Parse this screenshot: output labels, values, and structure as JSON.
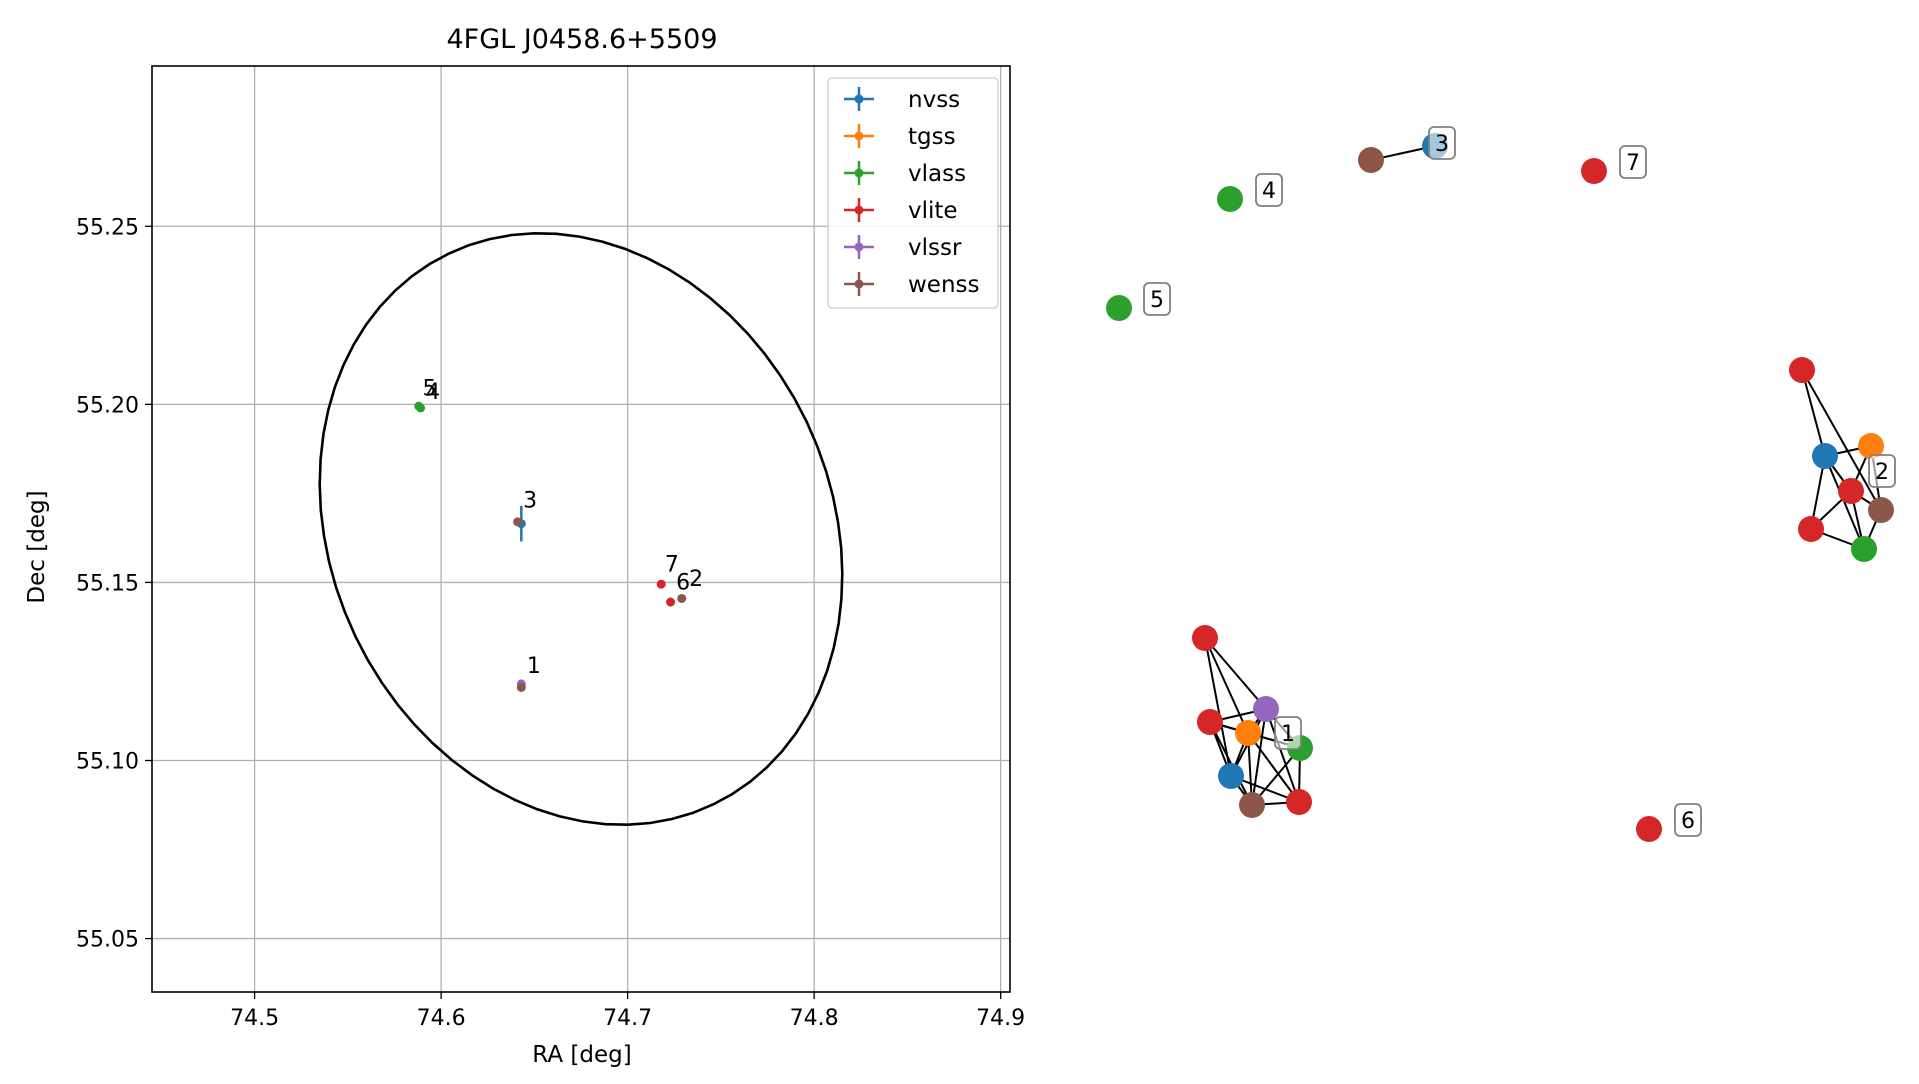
{
  "chart_data": [
    {
      "type": "scatter",
      "title": "4FGL J0458.6+5509",
      "xlabel": "RA [deg]",
      "ylabel": "Dec [deg]",
      "xlim": [
        74.445,
        74.905
      ],
      "ylim": [
        55.035,
        55.295
      ],
      "xticks": [
        74.5,
        74.6,
        74.7,
        74.8,
        74.9
      ],
      "xtick_labels": [
        "74.5",
        "74.6",
        "74.7",
        "74.8",
        "74.9"
      ],
      "yticks": [
        55.05,
        55.1,
        55.15,
        55.2,
        55.25
      ],
      "ytick_labels": [
        "55.05",
        "55.10",
        "55.15",
        "55.20",
        "55.25"
      ],
      "grid": true,
      "legend_position": "upper right",
      "ellipse": {
        "ra_center": 74.675,
        "dec_center": 55.165,
        "ra_half_width": 0.141,
        "dec_half_height": 0.0815,
        "tilt_deg": -8
      },
      "series": [
        {
          "name": "nvss",
          "color": "#1f77b4",
          "points": [
            {
              "ra": 74.643,
              "dec": 55.1665,
              "err_dec": 0.005
            }
          ]
        },
        {
          "name": "tgss",
          "color": "#ff7f0e",
          "points": []
        },
        {
          "name": "vlass",
          "color": "#2ca02c",
          "points": [
            {
              "ra": 74.588,
              "dec": 55.1995
            },
            {
              "ra": 74.589,
              "dec": 55.199
            }
          ]
        },
        {
          "name": "vlite",
          "color": "#d62728",
          "points": [
            {
              "ra": 74.718,
              "dec": 55.1495
            },
            {
              "ra": 74.723,
              "dec": 55.1445
            }
          ]
        },
        {
          "name": "vlssr",
          "color": "#9467bd",
          "points": [
            {
              "ra": 74.643,
              "dec": 55.1215
            }
          ]
        },
        {
          "name": "wenss",
          "color": "#8c564b",
          "points": [
            {
              "ra": 74.641,
              "dec": 55.167
            },
            {
              "ra": 74.643,
              "dec": 55.1205
            },
            {
              "ra": 74.729,
              "dec": 55.1455
            }
          ]
        }
      ],
      "annotations": [
        {
          "text": "1",
          "ra": 74.646,
          "dec": 55.1245
        },
        {
          "text": "2",
          "ra": 74.733,
          "dec": 55.149
        },
        {
          "text": "3",
          "ra": 74.644,
          "dec": 55.171
        },
        {
          "text": "4",
          "ra": 74.592,
          "dec": 55.2015
        },
        {
          "text": "5",
          "ra": 74.59,
          "dec": 55.2025
        },
        {
          "text": "6",
          "ra": 74.726,
          "dec": 55.148
        },
        {
          "text": "7",
          "ra": 74.72,
          "dec": 55.153
        }
      ]
    },
    {
      "type": "network",
      "nodes": [
        {
          "id": "g5",
          "color": "#2ca02c"
        },
        {
          "id": "g4",
          "color": "#2ca02c"
        },
        {
          "id": "b3",
          "color": "#8c564b"
        },
        {
          "id": "n3",
          "color": "#1f77b4"
        },
        {
          "id": "r7",
          "color": "#d62728"
        },
        {
          "id": "r6",
          "color": "#d62728"
        },
        {
          "id": "c2_r1",
          "color": "#d62728"
        },
        {
          "id": "c2_o",
          "color": "#ff7f0e"
        },
        {
          "id": "c2_b",
          "color": "#1f77b4"
        },
        {
          "id": "c2_r2",
          "color": "#d62728"
        },
        {
          "id": "c2_br",
          "color": "#8c564b"
        },
        {
          "id": "c2_r3",
          "color": "#d62728"
        },
        {
          "id": "c2_g",
          "color": "#2ca02c"
        },
        {
          "id": "c1_r1",
          "color": "#d62728"
        },
        {
          "id": "c1_r2",
          "color": "#d62728"
        },
        {
          "id": "c1_p",
          "color": "#9467bd"
        },
        {
          "id": "c1_o",
          "color": "#ff7f0e"
        },
        {
          "id": "c1_g",
          "color": "#2ca02c"
        },
        {
          "id": "c1_b",
          "color": "#1f77b4"
        },
        {
          "id": "c1_br",
          "color": "#8c564b"
        },
        {
          "id": "c1_r3",
          "color": "#d62728"
        }
      ],
      "edges": [
        [
          "b3",
          "n3"
        ],
        [
          "c2_r1",
          "c2_b"
        ],
        [
          "c2_r1",
          "c2_br"
        ],
        [
          "c2_b",
          "c2_o"
        ],
        [
          "c2_b",
          "c2_r2"
        ],
        [
          "c2_b",
          "c2_r3"
        ],
        [
          "c2_b",
          "c2_g"
        ],
        [
          "c2_o",
          "c2_r2"
        ],
        [
          "c2_o",
          "c2_br"
        ],
        [
          "c2_r2",
          "c2_br"
        ],
        [
          "c2_r2",
          "c2_r3"
        ],
        [
          "c2_r2",
          "c2_g"
        ],
        [
          "c2_br",
          "c2_g"
        ],
        [
          "c2_r3",
          "c2_g"
        ],
        [
          "c1_r1",
          "c1_p"
        ],
        [
          "c1_r1",
          "c1_o"
        ],
        [
          "c1_r1",
          "c1_b"
        ],
        [
          "c1_r2",
          "c1_p"
        ],
        [
          "c1_r2",
          "c1_o"
        ],
        [
          "c1_r2",
          "c1_g"
        ],
        [
          "c1_r2",
          "c1_b"
        ],
        [
          "c1_r2",
          "c1_br"
        ],
        [
          "c1_p",
          "c1_o"
        ],
        [
          "c1_p",
          "c1_g"
        ],
        [
          "c1_p",
          "c1_b"
        ],
        [
          "c1_p",
          "c1_br"
        ],
        [
          "c1_p",
          "c1_r3"
        ],
        [
          "c1_o",
          "c1_g"
        ],
        [
          "c1_o",
          "c1_b"
        ],
        [
          "c1_o",
          "c1_br"
        ],
        [
          "c1_o",
          "c1_r3"
        ],
        [
          "c1_g",
          "c1_br"
        ],
        [
          "c1_g",
          "c1_r3"
        ],
        [
          "c1_b",
          "c1_br"
        ],
        [
          "c1_b",
          "c1_r3"
        ],
        [
          "c1_br",
          "c1_r3"
        ]
      ],
      "labels": [
        {
          "text": "1",
          "node": "c1_p"
        },
        {
          "text": "2",
          "node": "c2_o"
        },
        {
          "text": "3",
          "node": "n3"
        },
        {
          "text": "4",
          "node": "g4"
        },
        {
          "text": "5",
          "node": "g5"
        },
        {
          "text": "6",
          "node": "r6"
        },
        {
          "text": "7",
          "node": "r7"
        }
      ]
    }
  ]
}
